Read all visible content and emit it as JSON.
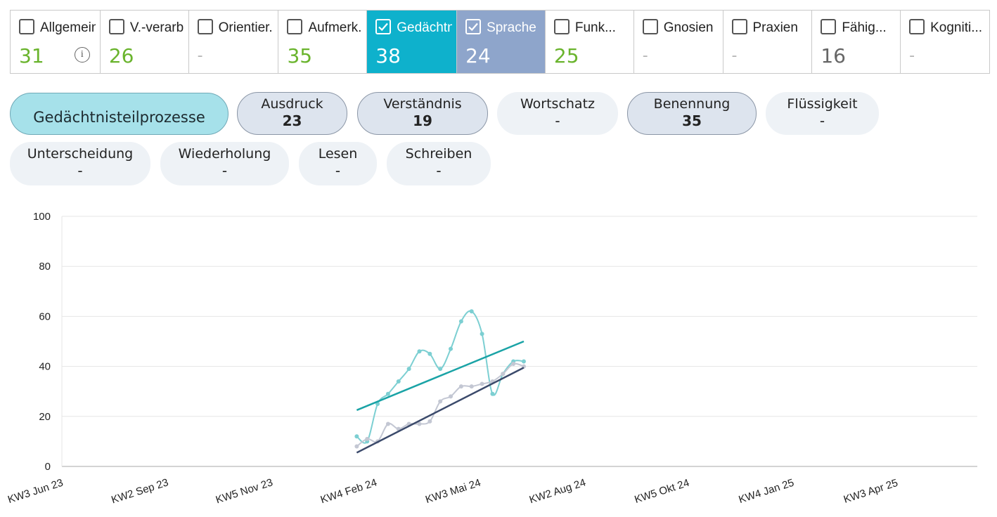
{
  "tiles": [
    {
      "label": "Allgemein",
      "value": "31",
      "checked": false,
      "style": "",
      "info": true
    },
    {
      "label": "V.-verarb...",
      "value": "26",
      "checked": false,
      "style": ""
    },
    {
      "label": "Orientier...",
      "value": "-",
      "checked": false,
      "style": ""
    },
    {
      "label": "Aufmerk...",
      "value": "35",
      "checked": false,
      "style": ""
    },
    {
      "label": "Gedächtn...",
      "value": "38",
      "checked": true,
      "style": "teal"
    },
    {
      "label": "Sprache",
      "value": "24",
      "checked": true,
      "style": "blue"
    },
    {
      "label": "Funk...",
      "value": "25",
      "checked": false,
      "style": ""
    },
    {
      "label": "Gnosien",
      "value": "-",
      "checked": false,
      "style": ""
    },
    {
      "label": "Praxien",
      "value": "-",
      "checked": false,
      "style": ""
    },
    {
      "label": "Fähig...",
      "value": "16",
      "checked": false,
      "style": "gray"
    },
    {
      "label": "Kogniti...",
      "value": "-",
      "checked": false,
      "style": ""
    }
  ],
  "info_icon": "info-circle-icon",
  "pills": [
    {
      "label": "Gedächtnisteilprozesse",
      "value": "",
      "state": "active"
    },
    {
      "label": "Ausdruck",
      "value": "23",
      "state": "sel"
    },
    {
      "label": "Verständnis",
      "value": "19",
      "state": "sel"
    },
    {
      "label": "Wortschatz",
      "value": "-",
      "state": "plain"
    },
    {
      "label": "Benennung",
      "value": "35",
      "state": "sel"
    },
    {
      "label": "Flüssigkeit",
      "value": "-",
      "state": "plain"
    },
    {
      "label": "Unterscheidung",
      "value": "-",
      "state": "plain"
    },
    {
      "label": "Wiederholung",
      "value": "-",
      "state": "plain"
    },
    {
      "label": "Lesen",
      "value": "-",
      "state": "plain"
    },
    {
      "label": "Schreiben",
      "value": "-",
      "state": "plain"
    }
  ],
  "colors": {
    "tile_teal": "#0eb1cc",
    "tile_blue": "#8ea5cb",
    "value_green": "#6ab42d",
    "series_teal": "#7ccfd2",
    "series_gray": "#c3c7d3",
    "trend_teal": "#1aa3a6",
    "trend_navy": "#3b4a6b"
  },
  "chart_data": {
    "type": "line",
    "xlabel": "",
    "ylabel": "",
    "ylim": [
      0,
      100
    ],
    "yticks": [
      0,
      20,
      40,
      60,
      80,
      100
    ],
    "x_ticks": [
      "KW3 Jun 23",
      "KW2 Sep 23",
      "KW5 Nov 23",
      "KW4 Feb 24",
      "KW3 Mai 24",
      "KW2 Aug 24",
      "KW5 Okt 24",
      "KW4 Jan 25",
      "KW3 Apr 25"
    ],
    "grid": true,
    "legend": false,
    "series": [
      {
        "color": "#7ccfd2",
        "x": [
          3.08,
          3.18,
          3.28,
          3.38,
          3.48,
          3.58,
          3.68,
          3.78,
          3.88,
          3.98,
          4.08,
          4.18,
          4.28,
          4.38,
          4.48,
          4.58,
          4.68
        ],
        "y": [
          12,
          10,
          25,
          29,
          34,
          39,
          46,
          45,
          39,
          47,
          58,
          62,
          53,
          29,
          37,
          42,
          42
        ]
      },
      {
        "color": "#c3c7d3",
        "x": [
          3.08,
          3.18,
          3.28,
          3.38,
          3.48,
          3.58,
          3.68,
          3.78,
          3.88,
          3.98,
          4.08,
          4.18,
          4.28,
          4.38,
          4.48,
          4.58,
          4.68
        ],
        "y": [
          8,
          11,
          10,
          17,
          15,
          17,
          17,
          18,
          26,
          28,
          32,
          32,
          33,
          34,
          37,
          41,
          40
        ]
      },
      {
        "color": "#1aa3a6",
        "trend": true,
        "x": [
          3.08,
          4.68
        ],
        "y": [
          22.5,
          50
        ]
      },
      {
        "color": "#3b4a6b",
        "trend": true,
        "x": [
          3.08,
          4.68
        ],
        "y": [
          5.5,
          39.5
        ]
      }
    ]
  }
}
